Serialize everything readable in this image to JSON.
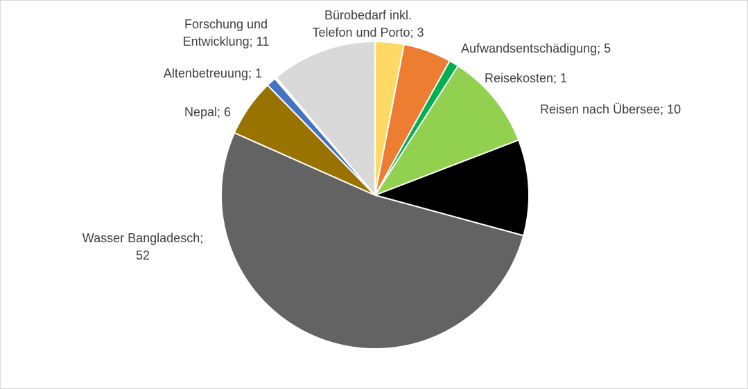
{
  "chart_data": {
    "type": "pie",
    "title": "",
    "slices": [
      {
        "category": "Bürobedarf inkl. Telefon und Porto",
        "value": 3,
        "label_lines": [
          "Bürobedarf inkl.",
          "Telefon und Porto; 3"
        ],
        "color": "#ffd966"
      },
      {
        "category": "Aufwandsentschädigung",
        "value": 5,
        "label_lines": [
          "Aufwandsentschädigung; 5"
        ],
        "color": "#ed7d31"
      },
      {
        "category": "Reisekosten",
        "value": 1,
        "label_lines": [
          "Reisekosten; 1"
        ],
        "color": "#00b050"
      },
      {
        "category": "Reisen nach Übersee",
        "value": 10,
        "label_lines": [
          "Reisen nach Übersee; 10"
        ],
        "color": "#92d050"
      },
      {
        "category": "",
        "value": 10,
        "label_lines": [],
        "color": "#000000"
      },
      {
        "category": "Wasser Bangladesch",
        "value": 52,
        "label_lines": [
          "Wasser Bangladesch;",
          "52"
        ],
        "color": "#636363"
      },
      {
        "category": "Nepal",
        "value": 6,
        "label_lines": [
          "Nepal; 6"
        ],
        "color": "#997300"
      },
      {
        "category": "Altenbetreuung",
        "value": 1,
        "label_lines": [
          "Altenbetreuung; 1"
        ],
        "color": "#4472c4"
      },
      {
        "category": "",
        "value": 0.2,
        "label_lines": [],
        "color": "#ffffff"
      },
      {
        "category": "Forschung und Entwicklung",
        "value": 11,
        "label_lines": [
          "Forschung und",
          "Entwicklung; 11"
        ],
        "color": "#d9d9d9"
      }
    ]
  }
}
